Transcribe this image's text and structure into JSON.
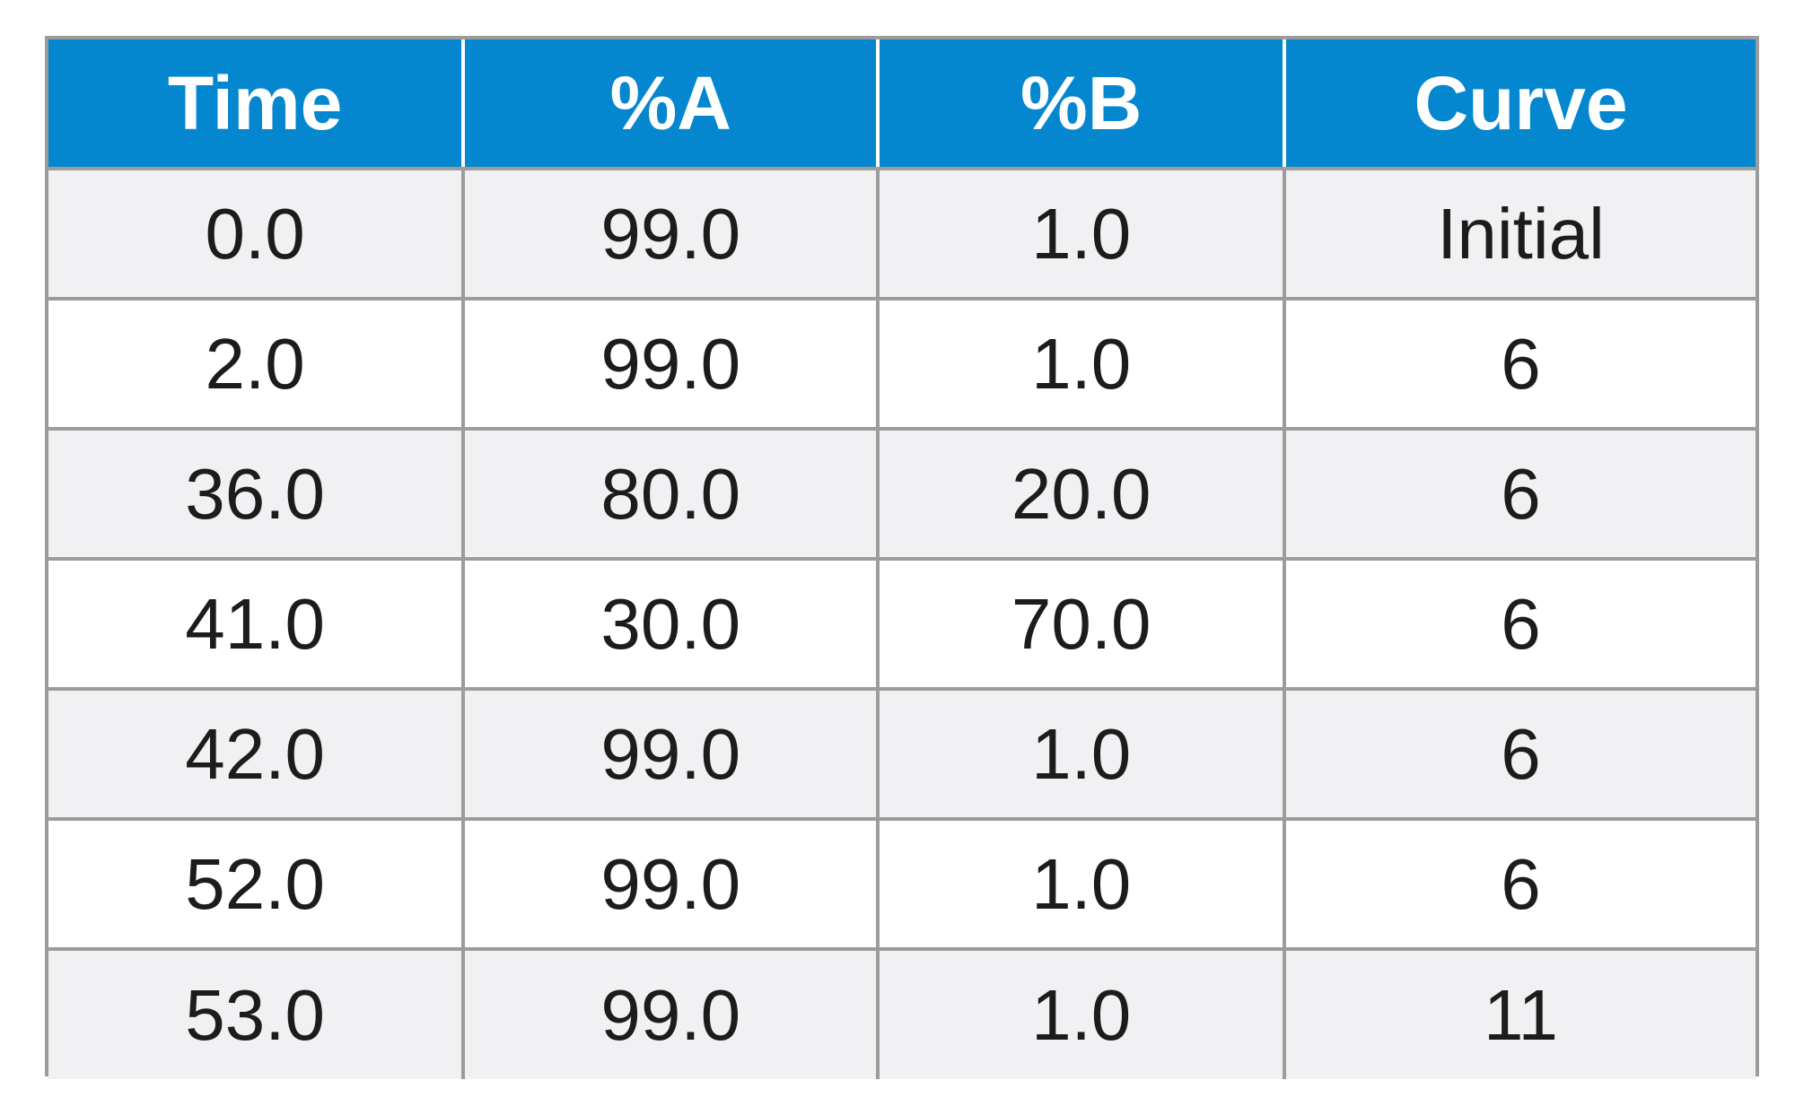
{
  "table": {
    "headers": [
      "Time",
      "%A",
      "%B",
      "Curve"
    ],
    "rows": [
      [
        "0.0",
        "99.0",
        "1.0",
        "Initial"
      ],
      [
        "2.0",
        "99.0",
        "1.0",
        "6"
      ],
      [
        "36.0",
        "80.0",
        "20.0",
        "6"
      ],
      [
        "41.0",
        "30.0",
        "70.0",
        "6"
      ],
      [
        "42.0",
        "99.0",
        "1.0",
        "6"
      ],
      [
        "52.0",
        "99.0",
        "1.0",
        "6"
      ],
      [
        "53.0",
        "99.0",
        "1.0",
        "11"
      ]
    ]
  },
  "colors": {
    "header_background": "#0587cf",
    "header_text": "#ffffff",
    "grid_lines": "#9c9c9c",
    "odd_row_background": "#f1f1f3",
    "even_row_background": "#ffffff",
    "cell_text": "#1c1c1c"
  }
}
